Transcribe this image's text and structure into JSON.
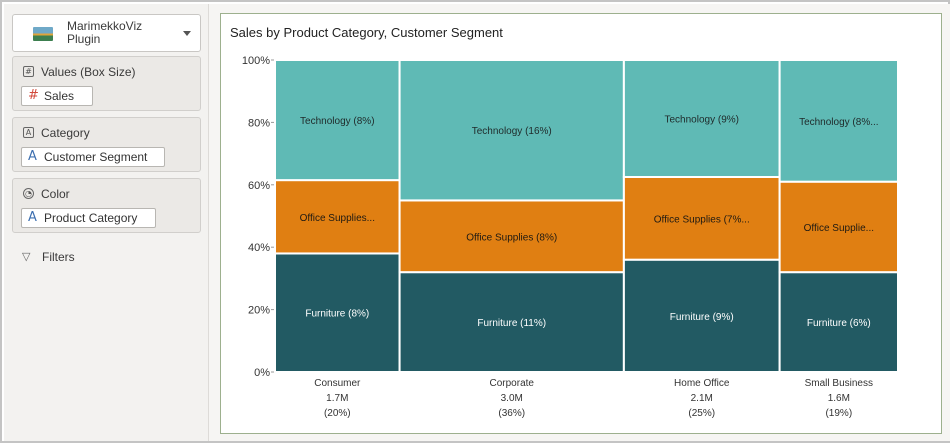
{
  "left_panel": {
    "plugin": {
      "label_line1": "MarimekkoViz",
      "label_line2": "Plugin",
      "thumb_icon": "plugin-thumbnail-icon"
    },
    "values_well": {
      "title": "Values (Box Size)",
      "icon": "hash-icon",
      "pill": "Sales",
      "pill_icon": "#"
    },
    "category_well": {
      "title": "Category",
      "icon": "text-box-icon",
      "pill": "Customer Segment",
      "pill_icon": "A"
    },
    "color_well": {
      "title": "Color",
      "icon": "palette-icon",
      "pill": "Product Category",
      "pill_icon": "A"
    },
    "filters": {
      "label": "Filters",
      "icon": "funnel-icon"
    }
  },
  "colors": {
    "technology": "#5fbab5",
    "office_supplies": "#e07f12",
    "furniture": "#225a63",
    "hash_accent": "#d24a3c",
    "text_accent": "#3d6fb0"
  },
  "chart_data": {
    "type": "marimekko",
    "title": "Sales by Product Category, Customer Segment",
    "y_ticks": [
      "0%",
      "20%",
      "40%",
      "60%",
      "80%",
      "100%"
    ],
    "ylim": [
      0,
      100
    ],
    "stack_order": [
      "Furniture",
      "Office Supplies",
      "Technology"
    ],
    "columns": [
      {
        "name": "Consumer",
        "total": "1.7M",
        "share_label": "(20%)",
        "share": 20,
        "segments": [
          {
            "category": "Furniture",
            "label": "Furniture (8%)",
            "percent": 38
          },
          {
            "category": "Office Supplies",
            "label": "Office Supplies...",
            "percent": 23.5
          },
          {
            "category": "Technology",
            "label": "Technology (8%)",
            "percent": 38.5
          }
        ]
      },
      {
        "name": "Corporate",
        "total": "3.0M",
        "share_label": "(36%)",
        "share": 36,
        "segments": [
          {
            "category": "Furniture",
            "label": "Furniture (11%)",
            "percent": 32
          },
          {
            "category": "Office Supplies",
            "label": "Office Supplies (8%)",
            "percent": 23
          },
          {
            "category": "Technology",
            "label": "Technology (16%)",
            "percent": 45
          }
        ]
      },
      {
        "name": "Home Office",
        "total": "2.1M",
        "share_label": "(25%)",
        "share": 25,
        "segments": [
          {
            "category": "Furniture",
            "label": "Furniture (9%)",
            "percent": 36
          },
          {
            "category": "Office Supplies",
            "label": "Office Supplies (7%...",
            "percent": 26.5
          },
          {
            "category": "Technology",
            "label": "Technology (9%)",
            "percent": 37.5
          }
        ]
      },
      {
        "name": "Small Business",
        "total": "1.6M",
        "share_label": "(19%)",
        "share": 19,
        "segments": [
          {
            "category": "Furniture",
            "label": "Furniture (6%)",
            "percent": 32
          },
          {
            "category": "Office Supplies",
            "label": "Office Supplie...",
            "percent": 29
          },
          {
            "category": "Technology",
            "label": "Technology (8%...",
            "percent": 39
          }
        ]
      }
    ]
  }
}
